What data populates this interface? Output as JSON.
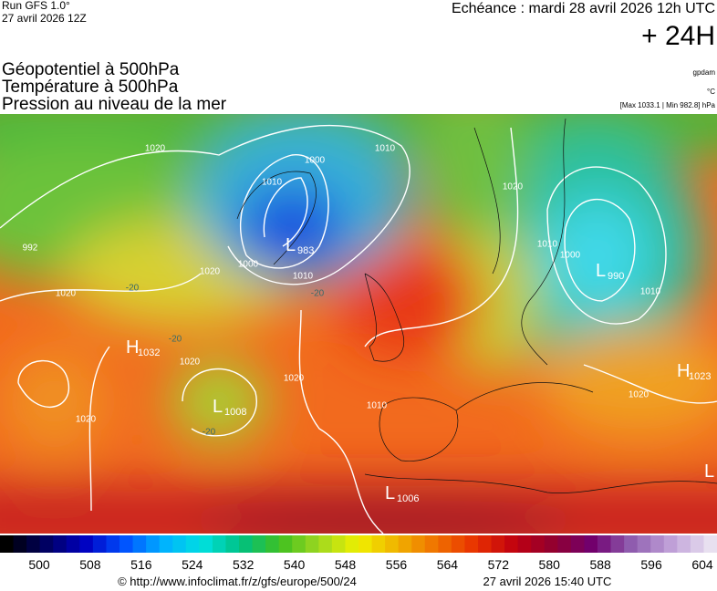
{
  "header": {
    "run": "Run GFS 1.0°",
    "run_date": "27 avril 2026 12Z",
    "forecast": "Echéance : mardi 28 avril 2026 12h UTC",
    "lead": "+ 24H"
  },
  "fields": [
    "Géopotentiel à 500hPa",
    "Température à 500hPa",
    "Pression au niveau de la mer"
  ],
  "units": [
    "gpdam",
    "°C",
    "[Max 1033.1 | Min 982.8] hPa"
  ],
  "centers": [
    {
      "letter": "L",
      "value": 983
    },
    {
      "letter": "L",
      "value": 990
    },
    {
      "letter": "H",
      "value": 1032
    },
    {
      "letter": "L",
      "value": 1008
    },
    {
      "letter": "L",
      "value": 1006
    },
    {
      "letter": "H",
      "value": 1023
    },
    {
      "letter": "L",
      "value": null
    }
  ],
  "isobar_labels": [
    1020,
    1010,
    1000,
    1010,
    992,
    1020,
    1000,
    1010,
    1020,
    1020,
    1010,
    1000,
    1010,
    1020,
    1020,
    1010,
    1020,
    1020
  ],
  "isotherm_labels": [
    -20,
    -20,
    -20,
    -20
  ],
  "scale": [
    500,
    508,
    516,
    524,
    532,
    540,
    548,
    556,
    564,
    572,
    580,
    588,
    596,
    604
  ],
  "footer": {
    "source": "© http://www.infoclimat.fr/z/gfs/europe/500/24",
    "generated": "27 avril 2026 15:40 UTC"
  }
}
